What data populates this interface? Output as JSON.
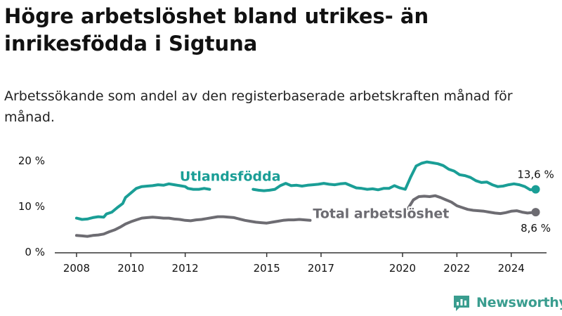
{
  "title": "Högre arbetslöshet bland utrikes- än inrikesfödda i Sigtuna",
  "subtitle": "Arbetssökande som andel av den registerbaserade arbetskraften månad för månad.",
  "brand": {
    "name": "Newsworthy"
  },
  "colors": {
    "utlands": "#1a9e96",
    "total": "#6d6c72",
    "axis": "#333333",
    "text": "#111111",
    "brand": "#3a9d8f"
  },
  "chart_data": {
    "type": "line",
    "title": "Högre arbetslöshet bland utrikes- än inrikesfödda i Sigtuna",
    "xlabel": "",
    "ylabel": "",
    "xlim": [
      2007.2,
      2025.3
    ],
    "ylim": [
      0,
      20
    ],
    "x_ticks": [
      2008,
      2010,
      2012,
      2015,
      2017,
      2020,
      2022,
      2024
    ],
    "y_ticks": [
      0,
      10,
      20
    ],
    "y_tick_labels": [
      "0 %",
      "10 %",
      "20 %"
    ],
    "grid": false,
    "series": [
      {
        "name": "Utlandsfödda",
        "label_x": 2011.8,
        "label_y": 15.5,
        "end_label": "13,6 %",
        "points": [
          [
            2008.0,
            7.3
          ],
          [
            2008.2,
            7.0
          ],
          [
            2008.4,
            7.1
          ],
          [
            2008.6,
            7.4
          ],
          [
            2008.8,
            7.6
          ],
          [
            2009.0,
            7.5
          ],
          [
            2009.1,
            8.2
          ],
          [
            2009.3,
            8.6
          ],
          [
            2009.5,
            9.6
          ],
          [
            2009.7,
            10.5
          ],
          [
            2009.8,
            11.8
          ],
          [
            2009.9,
            12.3
          ],
          [
            2010.0,
            12.8
          ],
          [
            2010.2,
            13.8
          ],
          [
            2010.4,
            14.2
          ],
          [
            2010.6,
            14.3
          ],
          [
            2010.8,
            14.4
          ],
          [
            2011.0,
            14.6
          ],
          [
            2011.2,
            14.5
          ],
          [
            2011.4,
            14.8
          ],
          [
            2011.6,
            14.6
          ],
          [
            2011.8,
            14.4
          ],
          [
            2012.0,
            14.2
          ],
          [
            2012.1,
            13.8
          ],
          [
            2012.3,
            13.6
          ],
          [
            2012.5,
            13.6
          ],
          [
            2012.7,
            13.8
          ],
          [
            2012.9,
            13.6
          ],
          null,
          [
            2014.5,
            13.6
          ],
          [
            2014.7,
            13.4
          ],
          [
            2014.9,
            13.3
          ],
          [
            2015.1,
            13.4
          ],
          [
            2015.3,
            13.6
          ],
          [
            2015.5,
            14.4
          ],
          [
            2015.7,
            14.9
          ],
          [
            2015.9,
            14.4
          ],
          [
            2016.1,
            14.5
          ],
          [
            2016.3,
            14.3
          ],
          [
            2016.5,
            14.5
          ],
          [
            2016.7,
            14.6
          ],
          [
            2016.9,
            14.7
          ],
          [
            2017.1,
            14.9
          ],
          [
            2017.3,
            14.7
          ],
          [
            2017.5,
            14.6
          ],
          [
            2017.7,
            14.8
          ],
          [
            2017.9,
            14.9
          ],
          [
            2018.1,
            14.4
          ],
          [
            2018.3,
            13.9
          ],
          [
            2018.5,
            13.8
          ],
          [
            2018.7,
            13.6
          ],
          [
            2018.9,
            13.7
          ],
          [
            2019.1,
            13.5
          ],
          [
            2019.3,
            13.8
          ],
          [
            2019.5,
            13.8
          ],
          [
            2019.7,
            14.4
          ],
          [
            2019.9,
            13.9
          ],
          [
            2020.1,
            13.6
          ],
          [
            2020.3,
            16.3
          ],
          [
            2020.5,
            18.7
          ],
          [
            2020.7,
            19.3
          ],
          [
            2020.9,
            19.6
          ],
          [
            2021.1,
            19.4
          ],
          [
            2021.3,
            19.2
          ],
          [
            2021.5,
            18.8
          ],
          [
            2021.7,
            18.0
          ],
          [
            2021.9,
            17.6
          ],
          [
            2022.1,
            16.8
          ],
          [
            2022.3,
            16.6
          ],
          [
            2022.5,
            16.2
          ],
          [
            2022.7,
            15.5
          ],
          [
            2022.9,
            15.1
          ],
          [
            2023.1,
            15.2
          ],
          [
            2023.3,
            14.6
          ],
          [
            2023.5,
            14.2
          ],
          [
            2023.7,
            14.3
          ],
          [
            2023.9,
            14.6
          ],
          [
            2024.1,
            14.8
          ],
          [
            2024.3,
            14.6
          ],
          [
            2024.5,
            14.2
          ],
          [
            2024.7,
            13.5
          ],
          [
            2024.9,
            13.6
          ]
        ]
      },
      {
        "name": "Total arbetslöshet",
        "label_x": 2016.7,
        "label_y": 7.3,
        "end_label": "8,6 %",
        "points": [
          [
            2008.0,
            3.5
          ],
          [
            2008.2,
            3.4
          ],
          [
            2008.4,
            3.3
          ],
          [
            2008.6,
            3.5
          ],
          [
            2008.8,
            3.6
          ],
          [
            2009.0,
            3.8
          ],
          [
            2009.2,
            4.3
          ],
          [
            2009.4,
            4.7
          ],
          [
            2009.6,
            5.3
          ],
          [
            2009.8,
            6.0
          ],
          [
            2010.0,
            6.5
          ],
          [
            2010.2,
            6.9
          ],
          [
            2010.4,
            7.3
          ],
          [
            2010.6,
            7.4
          ],
          [
            2010.8,
            7.5
          ],
          [
            2011.0,
            7.4
          ],
          [
            2011.2,
            7.3
          ],
          [
            2011.4,
            7.3
          ],
          [
            2011.6,
            7.1
          ],
          [
            2011.8,
            7.0
          ],
          [
            2012.0,
            6.8
          ],
          [
            2012.2,
            6.7
          ],
          [
            2012.4,
            6.9
          ],
          [
            2012.6,
            7.0
          ],
          [
            2012.8,
            7.2
          ],
          [
            2013.0,
            7.4
          ],
          [
            2013.2,
            7.6
          ],
          [
            2013.4,
            7.6
          ],
          [
            2013.6,
            7.5
          ],
          [
            2013.8,
            7.4
          ],
          [
            2014.0,
            7.1
          ],
          [
            2014.2,
            6.8
          ],
          [
            2014.4,
            6.6
          ],
          [
            2014.6,
            6.4
          ],
          [
            2014.8,
            6.3
          ],
          [
            2015.0,
            6.2
          ],
          [
            2015.2,
            6.4
          ],
          [
            2015.4,
            6.6
          ],
          [
            2015.6,
            6.8
          ],
          [
            2015.8,
            6.9
          ],
          [
            2016.0,
            6.9
          ],
          [
            2016.2,
            7.0
          ],
          [
            2016.4,
            6.9
          ],
          [
            2016.6,
            6.8
          ],
          null,
          [
            2020.2,
            9.4
          ],
          [
            2020.4,
            11.3
          ],
          [
            2020.6,
            12.0
          ],
          [
            2020.8,
            12.1
          ],
          [
            2021.0,
            12.0
          ],
          [
            2021.2,
            12.2
          ],
          [
            2021.4,
            11.8
          ],
          [
            2021.6,
            11.3
          ],
          [
            2021.8,
            10.8
          ],
          [
            2022.0,
            10.0
          ],
          [
            2022.2,
            9.6
          ],
          [
            2022.4,
            9.2
          ],
          [
            2022.6,
            9.0
          ],
          [
            2022.8,
            8.9
          ],
          [
            2023.0,
            8.8
          ],
          [
            2023.2,
            8.6
          ],
          [
            2023.4,
            8.4
          ],
          [
            2023.6,
            8.3
          ],
          [
            2023.8,
            8.5
          ],
          [
            2024.0,
            8.8
          ],
          [
            2024.2,
            8.9
          ],
          [
            2024.4,
            8.6
          ],
          [
            2024.6,
            8.4
          ],
          [
            2024.9,
            8.6
          ]
        ]
      }
    ]
  }
}
